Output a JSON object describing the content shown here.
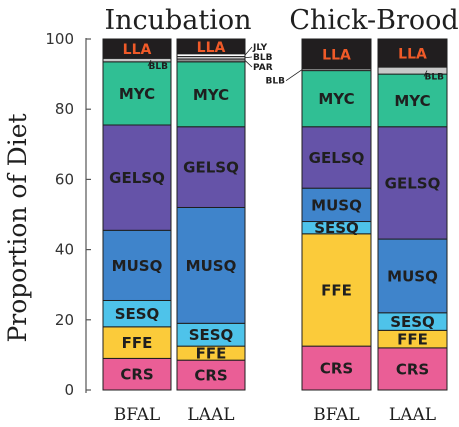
{
  "chart_data": {
    "type": "bar",
    "stacked": true,
    "ylabel": "Proportion of Diet",
    "ylim": [
      0,
      100
    ],
    "yticks": [
      0,
      20,
      40,
      60,
      80,
      100
    ],
    "grid": false,
    "legend": "none (segments labeled inline)",
    "groups": [
      {
        "title": "Incubation",
        "bars": [
          {
            "category": "BFAL",
            "segments": [
              {
                "name": "CRS",
                "value": 9,
                "label": "CRS",
                "color": "#ea5e96",
                "text_color": "#1f1f1f"
              },
              {
                "name": "FFE",
                "value": 9,
                "label": "FFE",
                "color": "#fbcb3a",
                "text_color": "#1f1f1f"
              },
              {
                "name": "SESQ",
                "value": 7.5,
                "label": "SESQ",
                "color": "#4ec3ea",
                "text_color": "#1f1f1f"
              },
              {
                "name": "MUSQ",
                "value": 20,
                "label": "MUSQ",
                "color": "#3f84cb",
                "text_color": "#1f1f1f"
              },
              {
                "name": "GELSQ",
                "value": 30,
                "label": "GELSQ",
                "color": "#6553a8",
                "text_color": "#1f1f1f"
              },
              {
                "name": "MYC",
                "value": 18,
                "label": "MYC",
                "color": "#30bf94",
                "text_color": "#1f1f1f"
              },
              {
                "name": "BLB",
                "value": 1,
                "label": "BLB",
                "color": "#c8c8c8",
                "text_color": "#1f1f1f"
              },
              {
                "name": "LLA",
                "value": 5.5,
                "label": "LLA",
                "color": "#211e1f",
                "text_color": "#f05a28"
              }
            ]
          },
          {
            "category": "LAAL",
            "segments": [
              {
                "name": "CRS",
                "value": 8.5,
                "label": "CRS",
                "color": "#ea5e96",
                "text_color": "#1f1f1f"
              },
              {
                "name": "FFE",
                "value": 4,
                "label": "FFE",
                "color": "#fbcb3a",
                "text_color": "#1f1f1f"
              },
              {
                "name": "SESQ",
                "value": 6.5,
                "label": "SESQ",
                "color": "#4ec3ea",
                "text_color": "#1f1f1f"
              },
              {
                "name": "MUSQ",
                "value": 33,
                "label": "MUSQ",
                "color": "#3f84cb",
                "text_color": "#1f1f1f"
              },
              {
                "name": "GELSQ",
                "value": 23,
                "label": "GELSQ",
                "color": "#6553a8",
                "text_color": "#1f1f1f"
              },
              {
                "name": "MYC",
                "value": 18.5,
                "label": "MYC",
                "color": "#30bf94",
                "text_color": "#1f1f1f"
              },
              {
                "name": "PAR",
                "value": 0.8,
                "label": "PAR",
                "color": "#8a8a8a",
                "text_color": "#1f1f1f"
              },
              {
                "name": "BLB",
                "value": 0.7,
                "label": "BLB",
                "color": "#d6d6d6",
                "text_color": "#1f1f1f"
              },
              {
                "name": "JLY",
                "value": 0.8,
                "label": "JLY",
                "color": "#ffffff",
                "text_color": "#1f1f1f"
              },
              {
                "name": "LLA",
                "value": 4.2,
                "label": "LLA",
                "color": "#211e1f",
                "text_color": "#f05a28"
              }
            ]
          }
        ]
      },
      {
        "title": "Chick-Brood",
        "bars": [
          {
            "category": "BFAL",
            "segments": [
              {
                "name": "CRS",
                "value": 12.5,
                "label": "CRS",
                "color": "#ea5e96",
                "text_color": "#1f1f1f"
              },
              {
                "name": "FFE",
                "value": 32,
                "label": "FFE",
                "color": "#fbcb3a",
                "text_color": "#1f1f1f"
              },
              {
                "name": "SESQ",
                "value": 3.5,
                "label": "SESQ",
                "color": "#4ec3ea",
                "text_color": "#1f1f1f"
              },
              {
                "name": "MUSQ",
                "value": 9.5,
                "label": "MUSQ",
                "color": "#3f84cb",
                "text_color": "#1f1f1f"
              },
              {
                "name": "GELSQ",
                "value": 17.5,
                "label": "GELSQ",
                "color": "#6553a8",
                "text_color": "#1f1f1f"
              },
              {
                "name": "MYC",
                "value": 16,
                "label": "MYC",
                "color": "#30bf94",
                "text_color": "#1f1f1f"
              },
              {
                "name": "BLB",
                "value": 0.5,
                "label": "BLB",
                "color": "#c8c8c8",
                "text_color": "#1f1f1f"
              },
              {
                "name": "LLA",
                "value": 8.5,
                "label": "LLA",
                "color": "#211e1f",
                "text_color": "#f05a28"
              }
            ]
          },
          {
            "category": "LAAL",
            "segments": [
              {
                "name": "CRS",
                "value": 12,
                "label": "CRS",
                "color": "#ea5e96",
                "text_color": "#1f1f1f"
              },
              {
                "name": "FFE",
                "value": 5,
                "label": "FFE",
                "color": "#fbcb3a",
                "text_color": "#1f1f1f"
              },
              {
                "name": "SESQ",
                "value": 5,
                "label": "SESQ",
                "color": "#4ec3ea",
                "text_color": "#1f1f1f"
              },
              {
                "name": "MUSQ",
                "value": 21,
                "label": "MUSQ",
                "color": "#3f84cb",
                "text_color": "#1f1f1f"
              },
              {
                "name": "GELSQ",
                "value": 32,
                "label": "GELSQ",
                "color": "#6553a8",
                "text_color": "#1f1f1f"
              },
              {
                "name": "MYC",
                "value": 15,
                "label": "MYC",
                "color": "#30bf94",
                "text_color": "#1f1f1f"
              },
              {
                "name": "BLB",
                "value": 2,
                "label": "BLB",
                "color": "#c8c8c8",
                "text_color": "#1f1f1f"
              },
              {
                "name": "LLA",
                "value": 8,
                "label": "LLA",
                "color": "#211e1f",
                "text_color": "#f05a28"
              }
            ]
          }
        ]
      }
    ]
  }
}
